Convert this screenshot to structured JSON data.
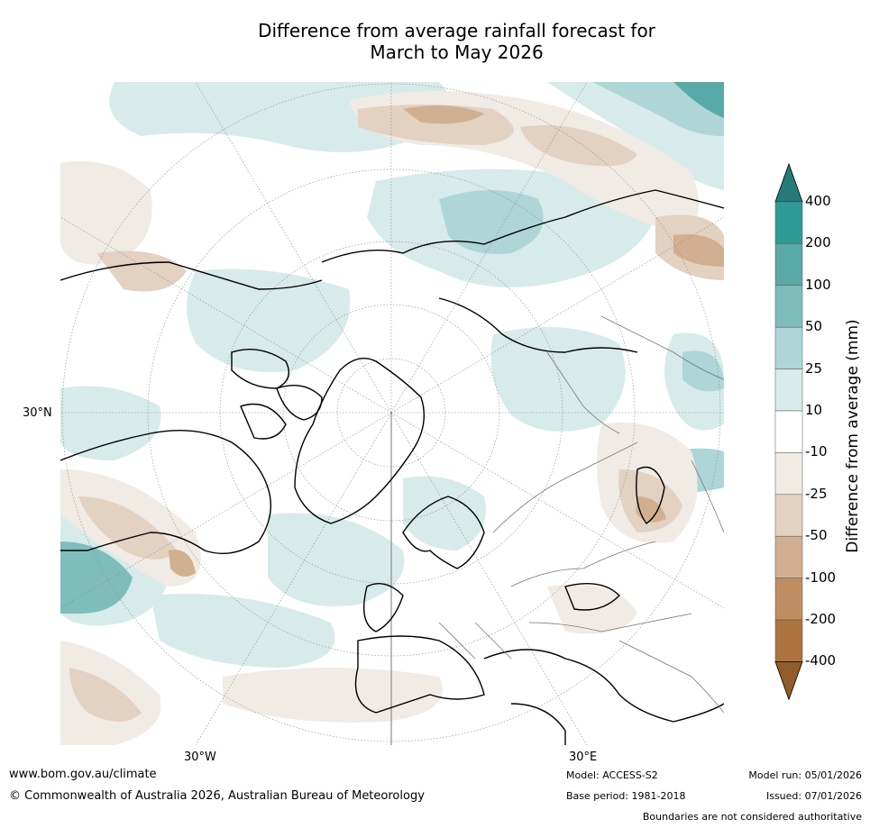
{
  "title_line1": "Difference from average rainfall forecast for",
  "title_line2": "March to May 2026",
  "map": {
    "lat_label": "30°N",
    "lon_labels": [
      "30°W",
      "30°E"
    ]
  },
  "colorbar": {
    "label": "Difference from average (mm)",
    "ticks": [
      "400",
      "200",
      "100",
      "50",
      "25",
      "10",
      "-10",
      "-25",
      "-50",
      "-100",
      "-200",
      "-400"
    ],
    "colors": {
      "over": "#257b79",
      "above_400_band": "#2e9a96",
      "b200_400": "#5aa9a9",
      "b100_200": "#7fbdbc",
      "b50_100": "#aed6d6",
      "b25_50": "#d7ebea",
      "b10_25": "#ffffff",
      "bm10_10": "#f1ebe5",
      "bm25_m10": "#e3d1c1",
      "bm50_m25": "#d1b092",
      "bm100_m50": "#c08d63",
      "bm200_m100": "#ad743f",
      "under": "#8f5c2a"
    }
  },
  "footer": {
    "url": "www.bom.gov.au/climate",
    "copyright": "© Commonwealth of Australia 2026, Australian Bureau of Meteorology",
    "model": "Model: ACCESS-S2",
    "base_period": "Base period: 1981-2018",
    "model_run": "Model run: 05/01/2026",
    "issued": "Issued: 07/01/2026",
    "disclaimer": "Boundaries are not considered authoritative"
  }
}
